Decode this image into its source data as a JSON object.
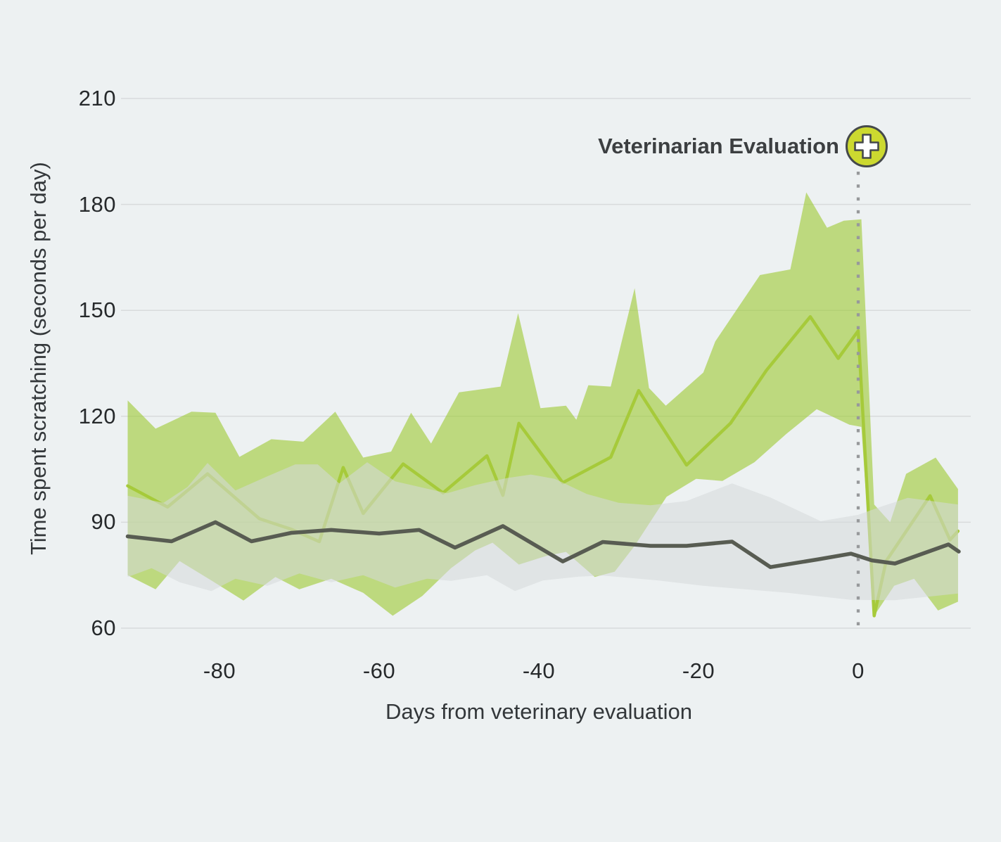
{
  "colors": {
    "background": "#edf1f2",
    "gridline": "#d8dbdc",
    "dotted_line": "#97999b",
    "icon_fill": "#ccd930",
    "icon_stroke": "#45494b",
    "icon_cross": "#ffffff",
    "tick_text": "#26292b",
    "axis_text": "#33373a",
    "annotation_text": "#3c3f41"
  },
  "chart_data": {
    "type": "line",
    "title": "",
    "xlabel": "Days from veterinary evaluation",
    "ylabel": "Time spent scratching (seconds per day)",
    "x_ticks": [
      -80,
      -60,
      -40,
      -20,
      0
    ],
    "y_ticks": [
      60,
      90,
      120,
      150,
      180,
      210
    ],
    "xlim": [
      -92,
      14
    ],
    "ylim": [
      54,
      216
    ],
    "grid": "horizontal",
    "legend": "none",
    "event_line_x": 0,
    "annotation": {
      "text": "Veterinarian Evaluation",
      "x": 0,
      "icon": "medical-plus-icon"
    },
    "units": "points are [day, seconds per day]",
    "series": [
      {
        "name": "green-scratching-line",
        "color": "#a6ca3a",
        "points": [
          [
            -91.5,
            100.3
          ],
          [
            -86.5,
            94.3
          ],
          [
            -81.5,
            103.7
          ],
          [
            -75,
            91
          ],
          [
            -71,
            88
          ],
          [
            -67.5,
            84.5
          ],
          [
            -64.5,
            105.5
          ],
          [
            -62,
            92.5
          ],
          [
            -57,
            106.5
          ],
          [
            -52,
            98.3
          ],
          [
            -46.5,
            108.8
          ],
          [
            -44.5,
            97.6
          ],
          [
            -42.5,
            118
          ],
          [
            -37,
            101.2
          ],
          [
            -31,
            108.4
          ],
          [
            -27.5,
            127.3
          ],
          [
            -21.5,
            106.2
          ],
          [
            -16,
            118
          ],
          [
            -11.5,
            133
          ],
          [
            -6,
            148.2
          ],
          [
            -2.5,
            136.4
          ],
          [
            0,
            144.2
          ],
          [
            2,
            63.5
          ],
          [
            3.5,
            79
          ],
          [
            9,
            97.5
          ],
          [
            11.5,
            85
          ],
          [
            12.5,
            87.5
          ]
        ],
        "band": {
          "color": "#9dc931",
          "opacity": 0.6,
          "upper": [
            [
              -91.5,
              124.5
            ],
            [
              -88,
              116.5
            ],
            [
              -83.5,
              121.3
            ],
            [
              -80.5,
              121
            ],
            [
              -77.5,
              108.5
            ],
            [
              -73.5,
              113.5
            ],
            [
              -69.5,
              112.8
            ],
            [
              -65.5,
              121.3
            ],
            [
              -62,
              108.3
            ],
            [
              -58.5,
              110
            ],
            [
              -56,
              121
            ],
            [
              -53.5,
              112.3
            ],
            [
              -50,
              126.8
            ],
            [
              -44.8,
              128.4
            ],
            [
              -42.6,
              149.2
            ],
            [
              -39.8,
              122.3
            ],
            [
              -36.6,
              123
            ],
            [
              -35.3,
              119
            ],
            [
              -33.8,
              128.8
            ],
            [
              -31,
              128.4
            ],
            [
              -28,
              156.3
            ],
            [
              -26.2,
              128
            ],
            [
              -24.1,
              123
            ],
            [
              -19.4,
              132.4
            ],
            [
              -17.9,
              141.2
            ],
            [
              -12.3,
              160
            ],
            [
              -8.5,
              161.6
            ],
            [
              -6.5,
              183.4
            ],
            [
              -3.9,
              173.4
            ],
            [
              -1.8,
              175.4
            ],
            [
              0.4,
              175.8
            ],
            [
              2,
              95
            ],
            [
              4,
              90
            ],
            [
              6,
              103.7
            ],
            [
              9.7,
              108.3
            ],
            [
              12.5,
              99.4
            ]
          ],
          "lower": [
            [
              -91.5,
              75
            ],
            [
              -88,
              71
            ],
            [
              -85,
              79
            ],
            [
              -81,
              73.5
            ],
            [
              -77,
              67.8
            ],
            [
              -73,
              74.5
            ],
            [
              -70,
              71
            ],
            [
              -66,
              74
            ],
            [
              -62,
              70
            ],
            [
              -58.3,
              63.5
            ],
            [
              -54.6,
              69.1
            ],
            [
              -51,
              77
            ],
            [
              -48,
              82
            ],
            [
              -45.8,
              84.2
            ],
            [
              -42.5,
              78
            ],
            [
              -39,
              80.5
            ],
            [
              -36.6,
              81.6
            ],
            [
              -33,
              74.5
            ],
            [
              -30.5,
              76
            ],
            [
              -28,
              83.3
            ],
            [
              -24,
              97.2
            ],
            [
              -20.3,
              102.3
            ],
            [
              -17,
              101.7
            ],
            [
              -13,
              107
            ],
            [
              -9,
              115
            ],
            [
              -5.2,
              122
            ],
            [
              -1.1,
              117.6
            ],
            [
              0.4,
              117
            ],
            [
              2,
              63.5
            ],
            [
              4.5,
              72
            ],
            [
              7,
              74
            ],
            [
              10,
              65
            ],
            [
              12.5,
              67.5
            ]
          ]
        }
      },
      {
        "name": "gray-scratching-line",
        "color": "#585c52",
        "points": [
          [
            -91.5,
            86
          ],
          [
            -86,
            84.6
          ],
          [
            -80.5,
            90
          ],
          [
            -76,
            84.6
          ],
          [
            -71,
            87
          ],
          [
            -66,
            87.8
          ],
          [
            -60,
            86.8
          ],
          [
            -55,
            87.8
          ],
          [
            -50.5,
            82.8
          ],
          [
            -44.5,
            88.9
          ],
          [
            -37,
            78.9
          ],
          [
            -32,
            84.4
          ],
          [
            -26,
            83.3
          ],
          [
            -21.5,
            83.3
          ],
          [
            -15.8,
            84.5
          ],
          [
            -11,
            77.3
          ],
          [
            -5,
            79.5
          ],
          [
            -0.9,
            81.1
          ],
          [
            1.7,
            79.2
          ],
          [
            4.6,
            78.3
          ],
          [
            11.3,
            83.7
          ],
          [
            12.6,
            81.7
          ]
        ],
        "band": {
          "color": "#d6d8db",
          "opacity": 0.55,
          "upper": [
            [
              -91.5,
              97.5
            ],
            [
              -87,
              95.5
            ],
            [
              -84,
              100
            ],
            [
              -81.5,
              106.8
            ],
            [
              -78,
              99
            ],
            [
              -74,
              103
            ],
            [
              -70.5,
              106.4
            ],
            [
              -67.7,
              106.4
            ],
            [
              -65,
              101
            ],
            [
              -61.5,
              107
            ],
            [
              -58,
              101.6
            ],
            [
              -51.5,
              98.2
            ],
            [
              -48,
              100.5
            ],
            [
              -44,
              102.5
            ],
            [
              -41,
              103.5
            ],
            [
              -38,
              102.3
            ],
            [
              -34,
              98
            ],
            [
              -30,
              95.5
            ],
            [
              -26,
              94.8
            ],
            [
              -21.5,
              96
            ],
            [
              -15.8,
              101
            ],
            [
              -11,
              97
            ],
            [
              -4.7,
              90.3
            ],
            [
              0,
              92.1
            ],
            [
              3,
              94.5
            ],
            [
              6.2,
              96.9
            ],
            [
              12.5,
              95
            ]
          ],
          "lower": [
            [
              -91.5,
              74.5
            ],
            [
              -88.5,
              77
            ],
            [
              -85,
              73
            ],
            [
              -81,
              70.5
            ],
            [
              -78,
              74
            ],
            [
              -74,
              72
            ],
            [
              -70,
              75.5
            ],
            [
              -66,
              73
            ],
            [
              -62,
              75
            ],
            [
              -58,
              71.5
            ],
            [
              -54,
              74
            ],
            [
              -51,
              73.4
            ],
            [
              -46.5,
              75
            ],
            [
              -43,
              70.5
            ],
            [
              -39.5,
              73.5
            ],
            [
              -35,
              74.6
            ],
            [
              -32,
              74.9
            ],
            [
              -25,
              73.5
            ],
            [
              -19.4,
              72
            ],
            [
              -8.8,
              70
            ],
            [
              -0.9,
              68
            ],
            [
              4.6,
              67.9
            ],
            [
              12.5,
              69.8
            ]
          ]
        }
      }
    ]
  }
}
